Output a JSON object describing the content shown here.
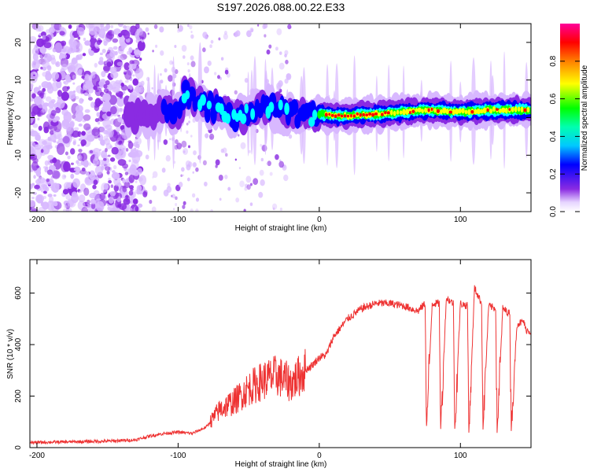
{
  "chart_data": [
    {
      "type": "heatmap",
      "title": "S197.2026.088.00.22.E33",
      "xlabel": "Height of straight line (km)",
      "ylabel": "Frequency (Hz)",
      "xlim": [
        -205,
        150
      ],
      "ylim": [
        -25,
        25
      ],
      "xticks": [
        -200,
        -100,
        0,
        100
      ],
      "yticks": [
        -20,
        -10,
        0,
        10,
        20
      ],
      "colorbar": {
        "label": "Normalized spectral amplitude",
        "range": [
          0,
          1
        ],
        "ticks": [
          "0.0",
          "0.2",
          "0.4",
          "0.6",
          "0.8"
        ],
        "tick_values": [
          0.0,
          0.2,
          0.4,
          0.6,
          0.8
        ]
      },
      "signal_trace": {
        "x": [
          -130,
          -120,
          -110,
          -100,
          -95,
          -90,
          -80,
          -70,
          -60,
          -50,
          -40,
          -30,
          -20,
          -10,
          0,
          10,
          20,
          40,
          60,
          80,
          100,
          120,
          150
        ],
        "freq": [
          0,
          1,
          2,
          1,
          7,
          5,
          3,
          2,
          0,
          1,
          3,
          2,
          1,
          0.5,
          1,
          0.5,
          0.5,
          1,
          1.5,
          2,
          1.5,
          2,
          2
        ]
      },
      "colors": [
        "#ffffff",
        "#d8b8ff",
        "#8a2be2",
        "#0000ff",
        "#00ffff",
        "#00ff00",
        "#ffff00",
        "#ff8000",
        "#ff0000",
        "#ff00aa"
      ]
    },
    {
      "type": "line",
      "xlabel": "Height of straight line (km)",
      "ylabel": "SNR (10 * v/v)",
      "xlim": [
        -205,
        150
      ],
      "ylim": [
        0,
        730
      ],
      "xticks": [
        -200,
        -100,
        0,
        100
      ],
      "yticks": [
        0,
        200,
        400,
        600
      ],
      "series": [
        {
          "name": "SNR",
          "color": "#ee3333",
          "x": [
            -205,
            -180,
            -150,
            -130,
            -120,
            -110,
            -100,
            -90,
            -80,
            -70,
            -60,
            -50,
            -40,
            -30,
            -20,
            -10,
            -5,
            0,
            5,
            10,
            20,
            30,
            40,
            50,
            60,
            70,
            75,
            76,
            80,
            85,
            86,
            90,
            95,
            96,
            100,
            105,
            106,
            110,
            115,
            116,
            120,
            125,
            126,
            130,
            135,
            136,
            140,
            145,
            146,
            150
          ],
          "y": [
            20,
            22,
            25,
            30,
            45,
            55,
            60,
            55,
            80,
            150,
            180,
            230,
            260,
            280,
            250,
            300,
            320,
            350,
            360,
            430,
            500,
            540,
            560,
            560,
            550,
            530,
            560,
            80,
            560,
            560,
            70,
            580,
            560,
            70,
            560,
            550,
            60,
            620,
            560,
            70,
            550,
            540,
            60,
            540,
            520,
            70,
            480,
            490,
            460,
            450
          ]
        }
      ]
    }
  ]
}
